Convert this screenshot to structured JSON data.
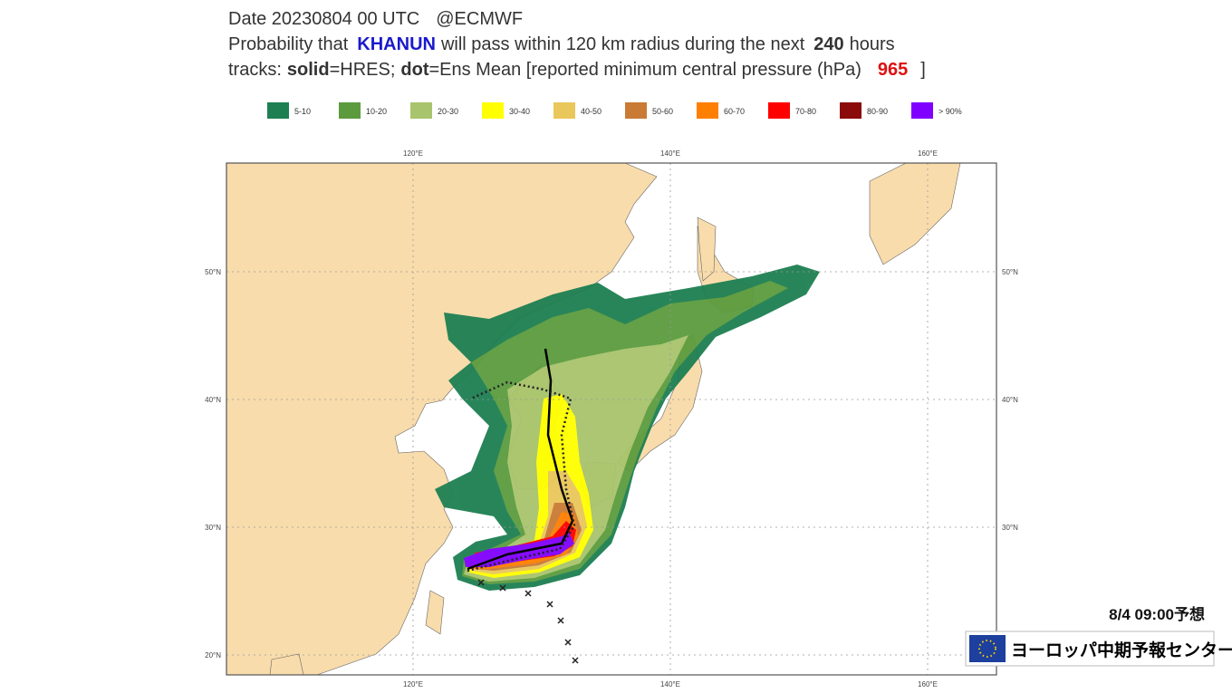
{
  "header": {
    "line1": {
      "date": "Date 20230804 00 UTC",
      "source": "@ECMWF"
    },
    "line2": {
      "prefix": "Probability that",
      "storm": "KHANUN",
      "middle": "will pass within 120 km radius during the next",
      "hours": "240",
      "suffix": "hours"
    },
    "line3": {
      "prefix": "tracks:",
      "solid": "solid",
      "solid_desc": "=HRES;",
      "dot": "dot",
      "dot_desc": "=Ens Mean [reported minimum central pressure (hPa)",
      "pressure": "965",
      "close": "]"
    }
  },
  "legend": [
    {
      "label": "5-10",
      "color": "#1d7f52"
    },
    {
      "label": "10-20",
      "color": "#5b9b3e"
    },
    {
      "label": "20-30",
      "color": "#a8c46c"
    },
    {
      "label": "30-40",
      "color": "#ffff00"
    },
    {
      "label": "40-50",
      "color": "#e9c75a"
    },
    {
      "label": "50-60",
      "color": "#c97a34"
    },
    {
      "label": "60-70",
      "color": "#ff7f00"
    },
    {
      "label": "70-80",
      "color": "#ff0000"
    },
    {
      "label": "80-90",
      "color": "#8b0a0a"
    },
    {
      "label": "> 90%",
      "color": "#8000ff"
    }
  ],
  "map": {
    "lon_labels": [
      {
        "value": 120,
        "label": "120°E"
      },
      {
        "value": 140,
        "label": "140°E"
      },
      {
        "value": 160,
        "label": "160°E"
      }
    ],
    "lat_labels": [
      {
        "value": 50,
        "label": "50°N"
      },
      {
        "value": 40,
        "label": "40°N"
      },
      {
        "value": 30,
        "label": "30°N"
      },
      {
        "value": 20,
        "label": "20°N"
      }
    ]
  },
  "footer": {
    "time": "8/4  09:00予想",
    "org": "ヨーロッパ中期予報センター"
  }
}
